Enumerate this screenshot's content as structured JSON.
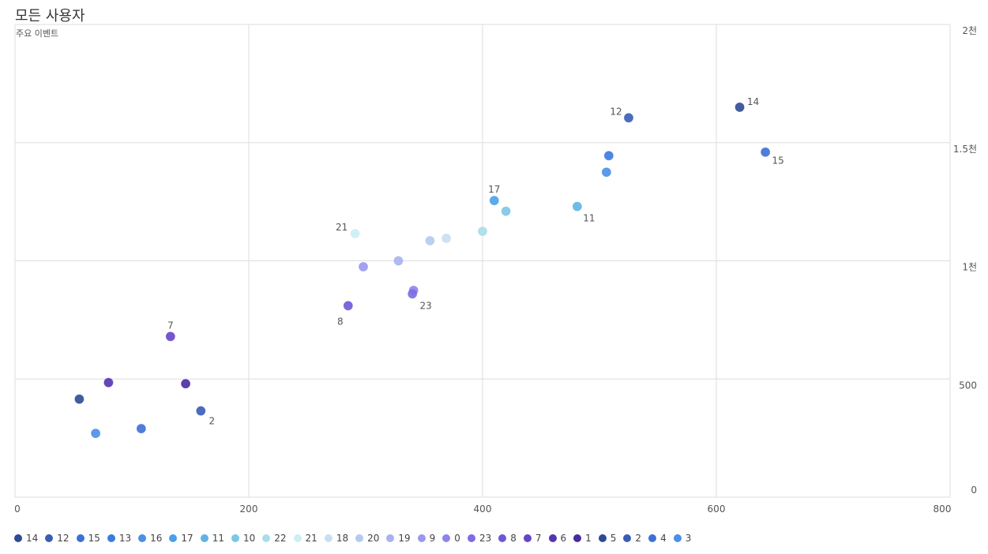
{
  "chart_title": "모든 사용자",
  "chart_data": {
    "type": "scatter",
    "title": "모든 사용자",
    "xlabel": "",
    "ylabel": "주요 이벤트",
    "xlim": [
      0,
      800
    ],
    "ylim": [
      0,
      2000
    ],
    "x_ticks": [
      "0",
      "200",
      "400",
      "600",
      "800"
    ],
    "y_ticks": [
      "0",
      "500",
      "1천",
      "1.5천",
      "2천"
    ],
    "y_axis_side": "right",
    "grid": true,
    "legend_position": "bottom",
    "points": [
      {
        "series": "14",
        "x": 620,
        "y": 1650,
        "color": "#2d4a94",
        "label": "14"
      },
      {
        "series": "12",
        "x": 525,
        "y": 1605,
        "color": "#3a5cb5",
        "label": "12"
      },
      {
        "series": "15",
        "x": 642,
        "y": 1460,
        "color": "#3e6fd6",
        "label": "15"
      },
      {
        "series": "13",
        "x": 508,
        "y": 1445,
        "color": "#3b7ae0",
        "label": ""
      },
      {
        "series": "16",
        "x": 506,
        "y": 1375,
        "color": "#4a8fe8",
        "label": ""
      },
      {
        "series": "17",
        "x": 410,
        "y": 1255,
        "color": "#4aa0ea",
        "label": "17"
      },
      {
        "series": "11",
        "x": 481,
        "y": 1230,
        "color": "#5fb2e5",
        "label": "11"
      },
      {
        "series": "10",
        "x": 420,
        "y": 1210,
        "color": "#7cc6e6",
        "label": ""
      },
      {
        "series": "22",
        "x": 400,
        "y": 1125,
        "color": "#a9dcea",
        "label": ""
      },
      {
        "series": "21",
        "x": 291,
        "y": 1115,
        "color": "#cdeef2",
        "label": "21"
      },
      {
        "series": "18",
        "x": 369,
        "y": 1095,
        "color": "#c9def4",
        "label": ""
      },
      {
        "series": "20",
        "x": 355,
        "y": 1085,
        "color": "#b6c9f0",
        "label": ""
      },
      {
        "series": "19",
        "x": 328,
        "y": 1000,
        "color": "#a7b2ef",
        "label": ""
      },
      {
        "series": "9",
        "x": 298,
        "y": 975,
        "color": "#9a98ee",
        "label": ""
      },
      {
        "series": "0",
        "x": 341,
        "y": 875,
        "color": "#8c84ec",
        "label": ""
      },
      {
        "series": "23",
        "x": 340,
        "y": 860,
        "color": "#7c6ce6",
        "label": "23"
      },
      {
        "series": "8",
        "x": 285,
        "y": 810,
        "color": "#6b58d8",
        "label": "8"
      },
      {
        "series": "7",
        "x": 133,
        "y": 680,
        "color": "#6744c8",
        "label": "7"
      },
      {
        "series": "6",
        "x": 80,
        "y": 485,
        "color": "#5433b0",
        "label": ""
      },
      {
        "series": "1",
        "x": 146,
        "y": 480,
        "color": "#4a2aa0",
        "label": ""
      },
      {
        "series": "5",
        "x": 55,
        "y": 415,
        "color": "#2d4a94",
        "label": ""
      },
      {
        "series": "2",
        "x": 159,
        "y": 365,
        "color": "#3a5cb5",
        "label": "2"
      },
      {
        "series": "4",
        "x": 108,
        "y": 290,
        "color": "#3e6fd6",
        "label": ""
      },
      {
        "series": "3",
        "x": 69,
        "y": 270,
        "color": "#4a8fe8",
        "label": ""
      }
    ],
    "legend": [
      {
        "name": "14",
        "color": "#2d4a94"
      },
      {
        "name": "12",
        "color": "#3a5cb5"
      },
      {
        "name": "15",
        "color": "#3e6fd6"
      },
      {
        "name": "13",
        "color": "#3b7ae0"
      },
      {
        "name": "16",
        "color": "#4a8fe8"
      },
      {
        "name": "17",
        "color": "#4aa0ea"
      },
      {
        "name": "11",
        "color": "#5fb2e5"
      },
      {
        "name": "10",
        "color": "#7cc6e6"
      },
      {
        "name": "22",
        "color": "#a9dcea"
      },
      {
        "name": "21",
        "color": "#cdeef2"
      },
      {
        "name": "18",
        "color": "#c9def4"
      },
      {
        "name": "20",
        "color": "#b6c9f0"
      },
      {
        "name": "19",
        "color": "#a7b2ef"
      },
      {
        "name": "9",
        "color": "#9a98ee"
      },
      {
        "name": "0",
        "color": "#8c84ec"
      },
      {
        "name": "23",
        "color": "#7c6ce6"
      },
      {
        "name": "8",
        "color": "#6b58d8"
      },
      {
        "name": "7",
        "color": "#6744c8"
      },
      {
        "name": "6",
        "color": "#5433b0"
      },
      {
        "name": "1",
        "color": "#4a2aa0"
      },
      {
        "name": "5",
        "color": "#2d4a94"
      },
      {
        "name": "2",
        "color": "#3a5cb5"
      },
      {
        "name": "4",
        "color": "#3e6fd6"
      },
      {
        "name": "3",
        "color": "#4a8fe8"
      }
    ]
  }
}
